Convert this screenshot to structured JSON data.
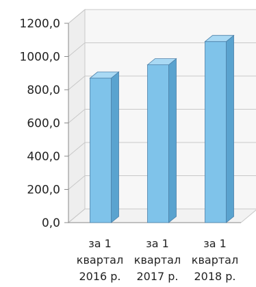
{
  "chart_data": {
    "type": "bar",
    "title": "",
    "xlabel": "",
    "ylabel": "",
    "ylim": [
      0,
      1200
    ],
    "y_ticks": [
      "0,0",
      "200,0",
      "400,0",
      "600,0",
      "800,0",
      "1000,0",
      "1200,0"
    ],
    "y_tick_values": [
      0,
      200,
      400,
      600,
      800,
      1000,
      1200
    ],
    "categories": [
      [
        "за 1",
        "квартал",
        "2016 р."
      ],
      [
        "за 1",
        "квартал",
        "2017 р."
      ],
      [
        "за 1",
        "квартал",
        "2018 р."
      ]
    ],
    "values": [
      870,
      950,
      1090
    ],
    "grid": true,
    "style": "3d-column",
    "colors": {
      "bar_front": "#7fc3ea",
      "bar_side": "#5aa3cf",
      "bar_top": "#a9d9f4",
      "bar_edge": "#4a7fa8",
      "grid": "#c8c8c8",
      "wall": "#f7f7f7"
    }
  }
}
